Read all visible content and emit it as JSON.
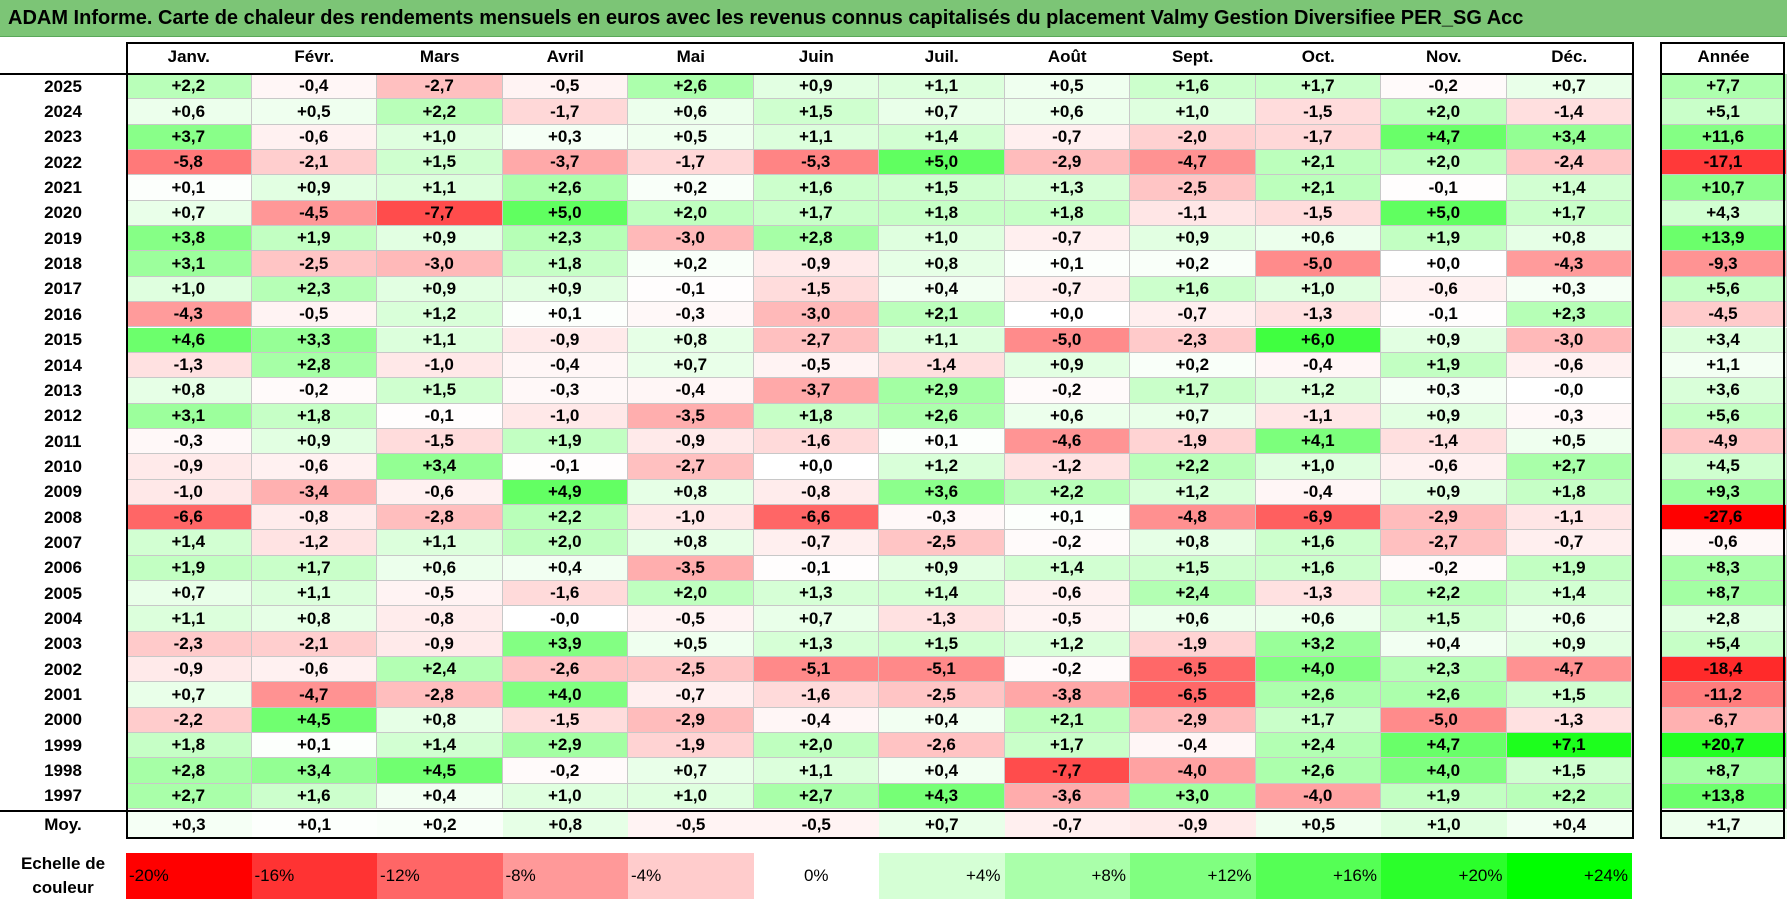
{
  "title": "ADAM Informe. Carte de chaleur des rendements mensuels en euros avec les revenus connus capitalisés du placement Valmy Gestion Diversifiee PER_SG Acc",
  "colors": {
    "title_bg": "#7cc576",
    "pos_max": "#00ff00",
    "neg_max": "#ff0000",
    "neutral": "#ffffff"
  },
  "chart_data": {
    "type": "heatmap",
    "title": "ADAM Informe. Carte de chaleur des rendements mensuels en euros avec les revenus connus capitalisés du placement Valmy Gestion Diversifiee PER_SG Acc",
    "months": [
      "Janv.",
      "Févr.",
      "Mars",
      "Avril",
      "Mai",
      "Juin",
      "Juil.",
      "Août",
      "Sept.",
      "Oct.",
      "Nov.",
      "Déc."
    ],
    "annual_header": "Année",
    "rows": [
      {
        "year": "2025",
        "values": [
          2.2,
          -0.4,
          -2.7,
          -0.5,
          2.6,
          0.9,
          1.1,
          0.5,
          1.6,
          1.7,
          -0.2,
          0.7
        ],
        "annual": 7.7
      },
      {
        "year": "2024",
        "values": [
          0.6,
          0.5,
          2.2,
          -1.7,
          0.6,
          1.5,
          0.7,
          0.6,
          1.0,
          -1.5,
          2.0,
          -1.4
        ],
        "annual": 5.1
      },
      {
        "year": "2023",
        "values": [
          3.7,
          -0.6,
          1.0,
          0.3,
          0.5,
          1.1,
          1.4,
          -0.7,
          -2.0,
          -1.7,
          4.7,
          3.4
        ],
        "annual": 11.6
      },
      {
        "year": "2022",
        "values": [
          -5.8,
          -2.1,
          1.5,
          -3.7,
          -1.7,
          -5.3,
          5.0,
          -2.9,
          -4.7,
          2.1,
          2.0,
          -2.4
        ],
        "annual": -17.1
      },
      {
        "year": "2021",
        "values": [
          0.1,
          0.9,
          1.1,
          2.6,
          0.2,
          1.6,
          1.5,
          1.3,
          -2.5,
          2.1,
          -0.1,
          1.4
        ],
        "annual": 10.7
      },
      {
        "year": "2020",
        "values": [
          0.7,
          -4.5,
          -7.7,
          5.0,
          2.0,
          1.7,
          1.8,
          1.8,
          -1.1,
          -1.5,
          5.0,
          1.7
        ],
        "annual": 4.3
      },
      {
        "year": "2019",
        "values": [
          3.8,
          1.9,
          0.9,
          2.3,
          -3.0,
          2.8,
          1.0,
          -0.7,
          0.9,
          0.6,
          1.9,
          0.8
        ],
        "annual": 13.9
      },
      {
        "year": "2018",
        "values": [
          3.1,
          -2.5,
          -3.0,
          1.8,
          0.2,
          -0.9,
          0.8,
          0.1,
          0.2,
          -5.0,
          0.0,
          -4.3
        ],
        "annual": -9.3
      },
      {
        "year": "2017",
        "values": [
          1.0,
          2.3,
          0.9,
          0.9,
          -0.1,
          -1.5,
          0.4,
          -0.7,
          1.6,
          1.0,
          -0.6,
          0.3
        ],
        "annual": 5.6
      },
      {
        "year": "2016",
        "values": [
          -4.3,
          -0.5,
          1.2,
          0.1,
          -0.3,
          -3.0,
          2.1,
          0.0,
          -0.7,
          -1.3,
          -0.1,
          2.3
        ],
        "annual": -4.5
      },
      {
        "year": "2015",
        "values": [
          4.6,
          3.3,
          1.1,
          -0.9,
          0.8,
          -2.7,
          1.1,
          -5.0,
          -2.3,
          6.0,
          0.9,
          -3.0
        ],
        "annual": 3.4
      },
      {
        "year": "2014",
        "values": [
          -1.3,
          2.8,
          -1.0,
          -0.4,
          0.7,
          -0.5,
          -1.4,
          0.9,
          0.2,
          -0.4,
          1.9,
          -0.6
        ],
        "annual": 1.1
      },
      {
        "year": "2013",
        "values": [
          0.8,
          -0.2,
          1.5,
          -0.3,
          -0.4,
          -3.7,
          2.9,
          -0.2,
          1.7,
          1.2,
          0.3,
          -0.0
        ],
        "annual": 3.6
      },
      {
        "year": "2012",
        "values": [
          3.1,
          1.8,
          -0.1,
          -1.0,
          -3.5,
          1.8,
          2.6,
          0.6,
          0.7,
          -1.1,
          0.9,
          -0.3
        ],
        "annual": 5.6
      },
      {
        "year": "2011",
        "values": [
          -0.3,
          0.9,
          -1.5,
          1.9,
          -0.9,
          -1.6,
          0.1,
          -4.6,
          -1.9,
          4.1,
          -1.4,
          0.5
        ],
        "annual": -4.9
      },
      {
        "year": "2010",
        "values": [
          -0.9,
          -0.6,
          3.4,
          -0.1,
          -2.7,
          0.0,
          1.2,
          -1.2,
          2.2,
          1.0,
          -0.6,
          2.7
        ],
        "annual": 4.5
      },
      {
        "year": "2009",
        "values": [
          -1.0,
          -3.4,
          -0.6,
          4.9,
          0.8,
          -0.8,
          3.6,
          2.2,
          1.2,
          -0.4,
          0.9,
          1.8
        ],
        "annual": 9.3
      },
      {
        "year": "2008",
        "values": [
          -6.6,
          -0.8,
          -2.8,
          2.2,
          -1.0,
          -6.6,
          -0.3,
          0.1,
          -4.8,
          -6.9,
          -2.9,
          -1.1
        ],
        "annual": -27.6
      },
      {
        "year": "2007",
        "values": [
          1.4,
          -1.2,
          1.1,
          2.0,
          0.8,
          -0.7,
          -2.5,
          -0.2,
          0.8,
          1.6,
          -2.7,
          -0.7
        ],
        "annual": -0.6
      },
      {
        "year": "2006",
        "values": [
          1.9,
          1.7,
          0.6,
          0.4,
          -3.5,
          -0.1,
          0.9,
          1.4,
          1.5,
          1.6,
          -0.2,
          1.9
        ],
        "annual": 8.3
      },
      {
        "year": "2005",
        "values": [
          0.7,
          1.1,
          -0.5,
          -1.6,
          2.0,
          1.3,
          1.4,
          -0.6,
          2.4,
          -1.3,
          2.2,
          1.4
        ],
        "annual": 8.7
      },
      {
        "year": "2004",
        "values": [
          1.1,
          0.8,
          -0.8,
          -0.0,
          -0.5,
          0.7,
          -1.3,
          -0.5,
          0.6,
          0.6,
          1.5,
          0.6
        ],
        "annual": 2.8
      },
      {
        "year": "2003",
        "values": [
          -2.3,
          -2.1,
          -0.9,
          3.9,
          0.5,
          1.3,
          1.5,
          1.2,
          -1.9,
          3.2,
          0.4,
          0.9
        ],
        "annual": 5.4
      },
      {
        "year": "2002",
        "values": [
          -0.9,
          -0.6,
          2.4,
          -2.6,
          -2.5,
          -5.1,
          -5.1,
          -0.2,
          -6.5,
          4.0,
          2.3,
          -4.7
        ],
        "annual": -18.4
      },
      {
        "year": "2001",
        "values": [
          0.7,
          -4.7,
          -2.8,
          4.0,
          -0.7,
          -1.6,
          -2.5,
          -3.8,
          -6.5,
          2.6,
          2.6,
          1.5
        ],
        "annual": -11.2
      },
      {
        "year": "2000",
        "values": [
          -2.2,
          4.5,
          0.8,
          -1.5,
          -2.9,
          -0.4,
          0.4,
          2.1,
          -2.9,
          1.7,
          -5.0,
          -1.3
        ],
        "annual": -6.7
      },
      {
        "year": "1999",
        "values": [
          1.8,
          0.1,
          1.4,
          2.9,
          -1.9,
          2.0,
          -2.6,
          1.7,
          -0.4,
          2.4,
          4.7,
          7.1
        ],
        "annual": 20.7
      },
      {
        "year": "1998",
        "values": [
          2.8,
          3.4,
          4.5,
          -0.2,
          0.7,
          1.1,
          0.4,
          -7.7,
          -4.0,
          2.6,
          4.0,
          1.5
        ],
        "annual": 8.7
      },
      {
        "year": "1997",
        "values": [
          2.7,
          1.6,
          0.4,
          1.0,
          1.0,
          2.7,
          4.3,
          -3.6,
          3.0,
          -4.0,
          1.9,
          2.2
        ],
        "annual": 13.8
      }
    ],
    "average": {
      "label": "Moy.",
      "values": [
        0.3,
        0.1,
        0.2,
        0.8,
        -0.5,
        -0.5,
        0.7,
        -0.7,
        -0.9,
        0.5,
        1.0,
        0.4
      ],
      "annual": 1.7
    },
    "scale": {
      "label_line1": "Echelle de",
      "label_line2": "couleur",
      "stops": [
        {
          "label": "-20%",
          "value": -20
        },
        {
          "label": "-16%",
          "value": -16
        },
        {
          "label": "-12%",
          "value": -12
        },
        {
          "label": "-8%",
          "value": -8
        },
        {
          "label": "-4%",
          "value": -4
        },
        {
          "label": "0%",
          "value": 0
        },
        {
          "label": "+4%",
          "value": 4
        },
        {
          "label": "+8%",
          "value": 8
        },
        {
          "label": "+12%",
          "value": 12
        },
        {
          "label": "+16%",
          "value": 16
        },
        {
          "label": "+20%",
          "value": 20
        },
        {
          "label": "+24%",
          "value": 24
        }
      ]
    }
  }
}
